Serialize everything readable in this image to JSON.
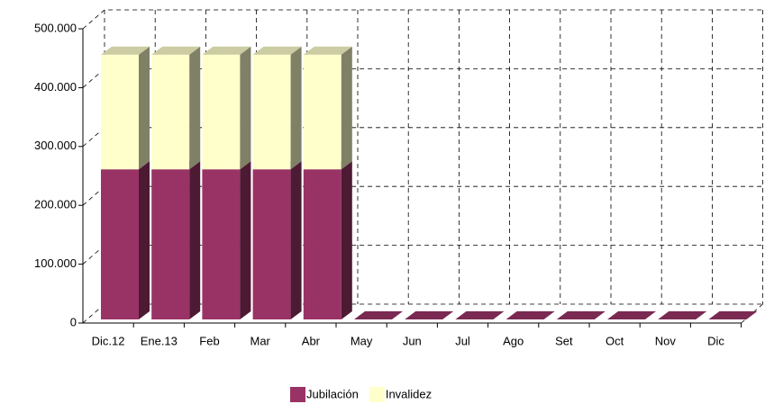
{
  "chart_data": {
    "type": "bar",
    "stacked": true,
    "categories": [
      "Dic.12",
      "Ene.13",
      "Feb",
      "Mar",
      "Abr",
      "May",
      "Jun",
      "Jul",
      "Ago",
      "Set",
      "Oct",
      "Nov",
      "Dic"
    ],
    "series": [
      {
        "name": "Jubilación",
        "color": "#993366",
        "values": [
          255000,
          255000,
          255000,
          255000,
          255000,
          0,
          0,
          0,
          0,
          0,
          0,
          0,
          0
        ]
      },
      {
        "name": "Invalidez",
        "color": "#ffffcc",
        "values": [
          195000,
          195000,
          195000,
          195000,
          195000,
          0,
          0,
          0,
          0,
          0,
          0,
          0,
          0
        ]
      }
    ],
    "ylim": [
      0,
      500000
    ],
    "yticks": [
      0,
      {
        "value": 100000,
        "label": "100.000"
      },
      {
        "value": 200000,
        "label": "200.000"
      },
      {
        "value": 300000,
        "label": "300.000"
      },
      {
        "value": 400000,
        "label": "400.000"
      },
      {
        "value": 500000,
        "label": "500.000"
      }
    ],
    "grid": true,
    "legend": "bottom"
  }
}
